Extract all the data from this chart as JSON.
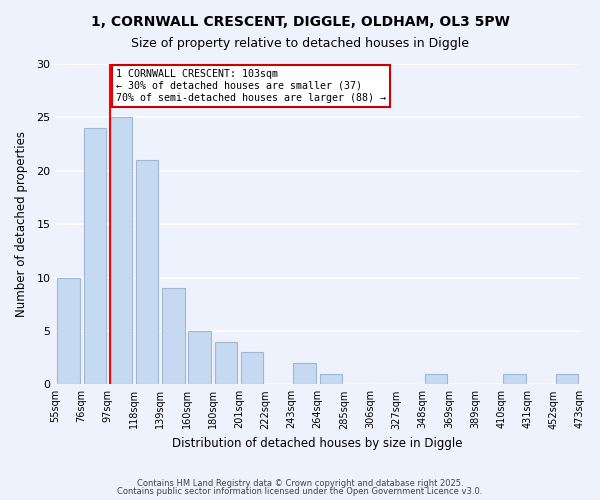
{
  "title1": "1, CORNWALL CRESCENT, DIGGLE, OLDHAM, OL3 5PW",
  "title2": "Size of property relative to detached houses in Diggle",
  "xlabel": "Distribution of detached houses by size in Diggle",
  "ylabel": "Number of detached properties",
  "categories": [
    "55sqm",
    "76sqm",
    "97sqm",
    "118sqm",
    "139sqm",
    "160sqm",
    "180sqm",
    "201sqm",
    "222sqm",
    "243sqm",
    "264sqm",
    "285sqm",
    "306sqm",
    "327sqm",
    "348sqm",
    "369sqm",
    "389sqm",
    "410sqm",
    "431sqm",
    "452sqm",
    "473sqm"
  ],
  "bar_values": [
    10,
    24,
    25,
    21,
    9,
    5,
    4,
    3,
    0,
    2,
    1,
    0,
    0,
    0,
    1,
    0,
    0,
    1,
    0,
    1
  ],
  "bar_color": "#c5d9f0",
  "bar_edge_color": "#a0b8d8",
  "red_line_index": 2,
  "ylim": [
    0,
    30
  ],
  "yticks": [
    0,
    5,
    10,
    15,
    20,
    25,
    30
  ],
  "annotation_line1": "1 CORNWALL CRESCENT: 103sqm",
  "annotation_line2": "← 30% of detached houses are smaller (37)",
  "annotation_line3": "70% of semi-detached houses are larger (88) →",
  "annotation_box_color": "#ffffff",
  "annotation_box_edge_color": "#cc0000",
  "background_color": "#eef2fc",
  "grid_color": "#ffffff",
  "footer1": "Contains HM Land Registry data © Crown copyright and database right 2025.",
  "footer2": "Contains public sector information licensed under the Open Government Licence v3.0."
}
